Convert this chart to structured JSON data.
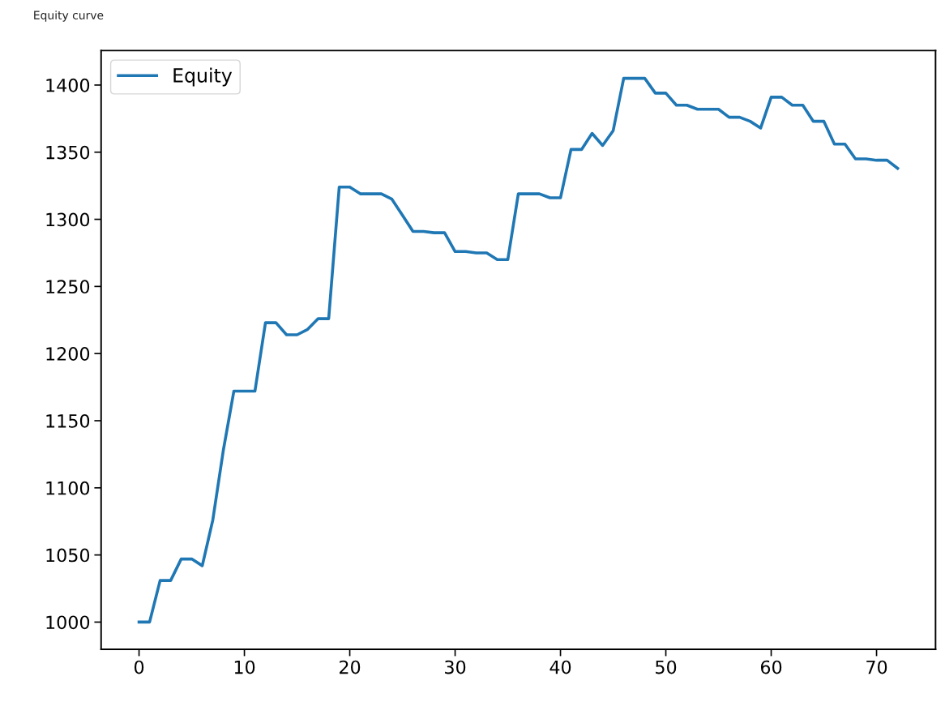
{
  "chart_data": {
    "type": "line",
    "title": "Equity curve",
    "x": [
      0,
      1,
      2,
      3,
      4,
      5,
      6,
      7,
      8,
      9,
      10,
      11,
      12,
      13,
      14,
      15,
      16,
      17,
      18,
      19,
      20,
      21,
      22,
      23,
      24,
      25,
      26,
      27,
      28,
      29,
      30,
      31,
      32,
      33,
      34,
      35,
      36,
      37,
      38,
      39,
      40,
      41,
      42,
      43,
      44,
      45,
      46,
      47,
      48,
      49,
      50,
      51,
      52,
      53,
      54,
      55,
      56,
      57,
      58,
      59,
      60,
      61,
      62,
      63,
      64,
      65,
      66,
      67,
      68,
      69,
      70,
      71,
      72
    ],
    "series": [
      {
        "name": "Equity",
        "color": "#1f77b4",
        "values": [
          1000,
          1000,
          1031,
          1031,
          1047,
          1047,
          1042,
          1076,
          1128,
          1172,
          1172,
          1172,
          1223,
          1223,
          1214,
          1214,
          1218,
          1226,
          1226,
          1324,
          1324,
          1319,
          1319,
          1319,
          1315,
          1303,
          1291,
          1291,
          1290,
          1290,
          1276,
          1276,
          1275,
          1275,
          1270,
          1270,
          1319,
          1319,
          1319,
          1316,
          1316,
          1352,
          1352,
          1364,
          1355,
          1366,
          1405,
          1405,
          1405,
          1394,
          1394,
          1385,
          1385,
          1382,
          1382,
          1382,
          1376,
          1376,
          1373,
          1368,
          1391,
          1391,
          1385,
          1385,
          1373,
          1373,
          1356,
          1356,
          1345,
          1345,
          1344,
          1344,
          1338
        ]
      }
    ],
    "xlim": [
      -3.6,
      75.6
    ],
    "xticks": [
      0,
      10,
      20,
      30,
      40,
      50,
      60,
      70
    ],
    "ylim": [
      979.7,
      1425.7
    ],
    "yticks": [
      1000,
      1050,
      1100,
      1150,
      1200,
      1250,
      1300,
      1350,
      1400
    ],
    "legend": "top left",
    "grid": false,
    "marker": "none",
    "line_style": "solid"
  }
}
